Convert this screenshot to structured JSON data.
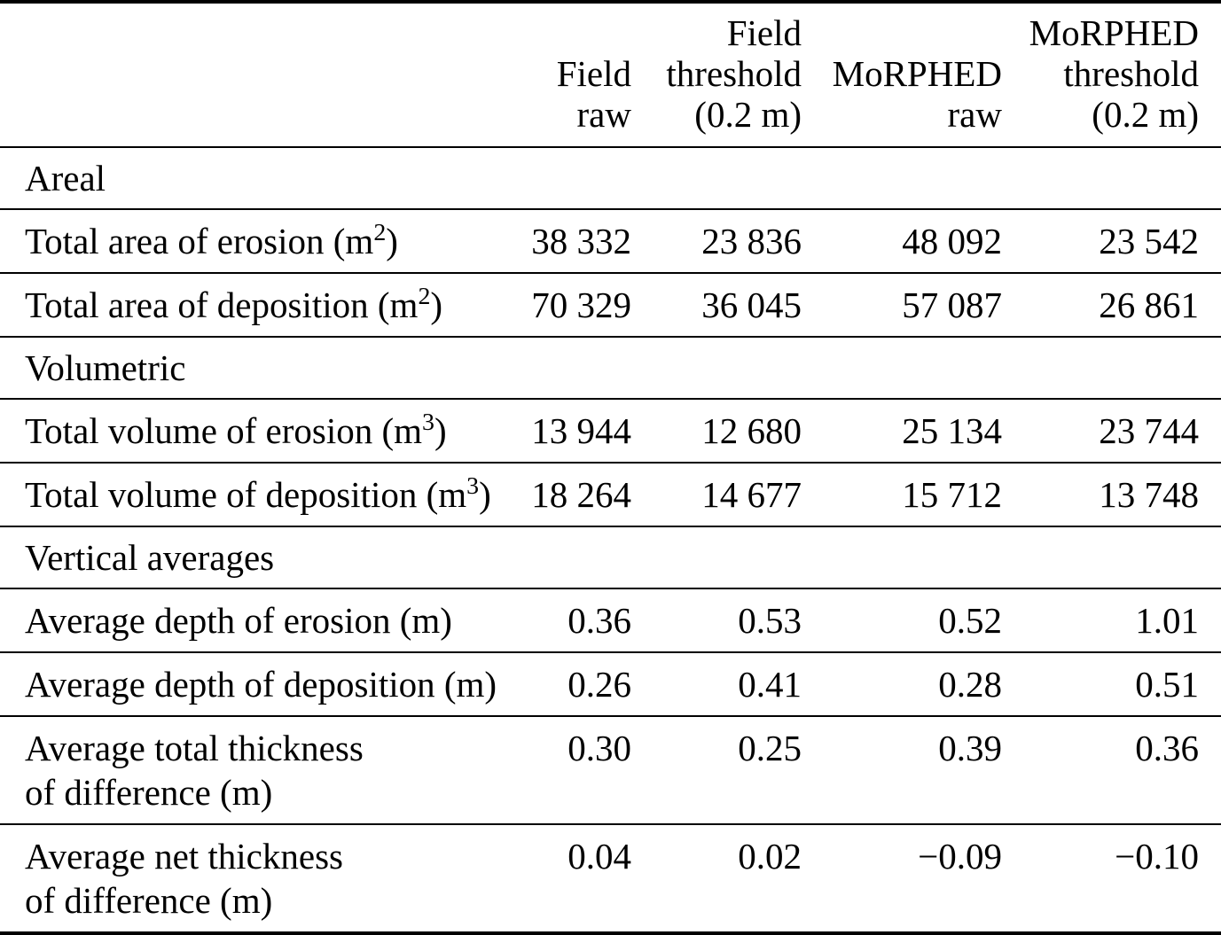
{
  "chart_data": {
    "type": "table",
    "columns": [
      "",
      "Field raw",
      "Field threshold (0.2 m)",
      "MoRPHED raw",
      "MoRPHED threshold (0.2 m)"
    ],
    "header_lines": [
      [],
      [
        "Field",
        "raw"
      ],
      [
        "Field",
        "threshold",
        "(0.2 m)"
      ],
      [
        "MoRPHED",
        "raw"
      ],
      [
        "MoRPHED",
        "threshold",
        "(0.2 m)"
      ]
    ],
    "sections": [
      {
        "title": "Areal",
        "rows": [
          {
            "label": "Total area of erosion (m",
            "sup": "2",
            "label_suffix": ")",
            "values": [
              "38 332",
              "23 836",
              "48 092",
              "23 542"
            ]
          },
          {
            "label": "Total area of deposition (m",
            "sup": "2",
            "label_suffix": ")",
            "values": [
              "70 329",
              "36 045",
              "57 087",
              "26 861"
            ]
          }
        ]
      },
      {
        "title": "Volumetric",
        "rows": [
          {
            "label": "Total volume of erosion (m",
            "sup": "3",
            "label_suffix": ")",
            "values": [
              "13 944",
              "12 680",
              "25 134",
              "23 744"
            ]
          },
          {
            "label": "Total volume of deposition (m",
            "sup": "3",
            "label_suffix": ")",
            "values": [
              "18 264",
              "14 677",
              "15 712",
              "13 748"
            ]
          }
        ]
      },
      {
        "title": "Vertical averages",
        "rows": [
          {
            "label": "Average depth of erosion (m)",
            "values": [
              "0.36",
              "0.53",
              "0.52",
              "1.01"
            ]
          },
          {
            "label": "Average depth of deposition (m)",
            "values": [
              "0.26",
              "0.41",
              "0.28",
              "0.51"
            ]
          },
          {
            "label": "Average total thickness",
            "label_line2": "of difference (m)",
            "values": [
              "0.30",
              "0.25",
              "0.39",
              "0.36"
            ]
          },
          {
            "label": "Average net thickness",
            "label_line2": "of difference (m)",
            "values": [
              "0.04",
              "0.02",
              "−0.09",
              "−0.10"
            ]
          }
        ]
      }
    ]
  }
}
